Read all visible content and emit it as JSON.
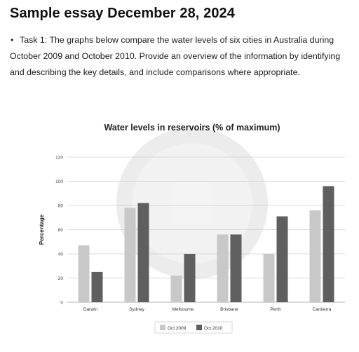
{
  "page": {
    "title": "Sample essay December 28, 2024",
    "task_lines": [
      "Task 1: The graphs below compare the water levels of six cities in Australia during",
      "October 2009 and October 2010. Provide an overview of the information by identifying",
      "and describing the key details, and include comparisons where appropriate."
    ]
  },
  "chart_data": {
    "type": "bar",
    "title": "Water levels in reservoirs (% of maximum)",
    "xlabel": "",
    "ylabel": "Percentage",
    "ylim": [
      0,
      120
    ],
    "yticks": [
      0,
      20,
      40,
      60,
      80,
      100,
      120
    ],
    "grid": true,
    "legend_position": "bottom",
    "categories": [
      "Darwin",
      "Sydney",
      "Melbourne",
      "Brisbane",
      "Perth",
      "Canberra"
    ],
    "series": [
      {
        "name": "Oct 2009",
        "color": "#c8c8c8",
        "values": [
          47,
          78,
          22,
          56,
          40,
          76
        ]
      },
      {
        "name": "Oct 2010",
        "color": "#5f5f5f",
        "values": [
          25,
          82,
          40,
          56,
          71,
          96
        ]
      }
    ]
  }
}
